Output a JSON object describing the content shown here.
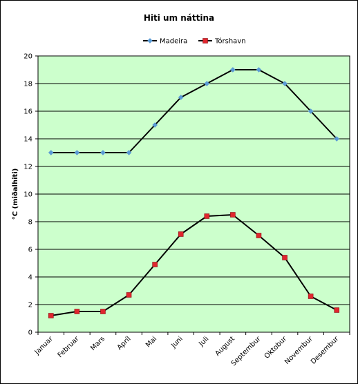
{
  "chart_data": {
    "type": "line",
    "title": "Hiti um náttina",
    "xlabel": "",
    "ylabel": "°C (miðalhiti)",
    "categories": [
      "Januar",
      "Februar",
      "Mars",
      "Apríl",
      "Mai",
      "Juni",
      "Juli",
      "August",
      "Septembur",
      "Oktobur",
      "Novembur",
      "Desembur"
    ],
    "series": [
      {
        "name": "Madeira",
        "color": "#5b9bd5",
        "marker": "diamond",
        "values": [
          13,
          13,
          13,
          13,
          15,
          17,
          18,
          19,
          19,
          18,
          16,
          14
        ]
      },
      {
        "name": "Tórshavn",
        "color": "#e0262e",
        "marker": "square",
        "values": [
          1.2,
          1.5,
          1.5,
          2.7,
          4.9,
          7.1,
          8.4,
          8.5,
          7.0,
          5.4,
          2.6,
          1.6
        ]
      }
    ],
    "ylim": [
      0,
      20
    ],
    "yticks": [
      0,
      2,
      4,
      6,
      8,
      10,
      12,
      14,
      16,
      18,
      20
    ],
    "grid": true,
    "legend_position": "top",
    "plot_background": "#ccffcc",
    "line_color": "#000000"
  }
}
